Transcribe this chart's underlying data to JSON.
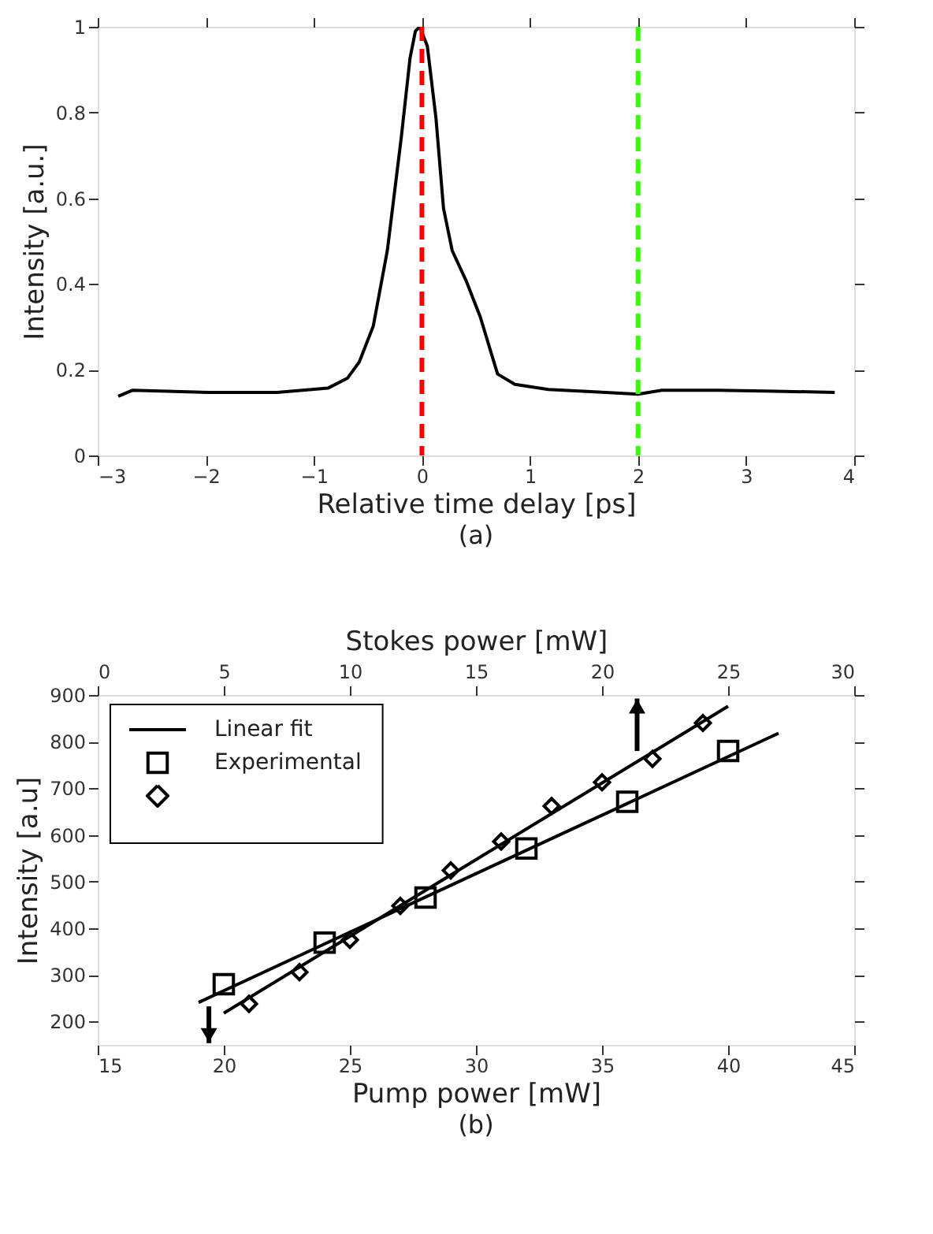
{
  "chart_data": [
    {
      "type": "line",
      "xlabel": "Relative time delay [ps]",
      "ylabel": "Intensity [a.u.]",
      "annotations": [
        "(a)"
      ],
      "xlim": [
        -3,
        4
      ],
      "xticks": [
        -3,
        -2,
        -1,
        0,
        1,
        2,
        3,
        4
      ],
      "ylim": [
        0,
        1
      ],
      "yticks": [
        0,
        0.2,
        0.4,
        0.6,
        0.8,
        1
      ],
      "grid": false,
      "legend": false,
      "series": [
        {
          "color": "#000000",
          "line_style": "solid",
          "x": [
            -2.81,
            -2.68,
            -1.97,
            -1.34,
            -0.87,
            -0.69,
            -0.58,
            -0.45,
            -0.32,
            -0.19,
            -0.11,
            -0.06,
            -0.02,
            0.05,
            0.13,
            0.2,
            0.28,
            0.41,
            0.54,
            0.7,
            0.86,
            1.17,
            1.7,
            2.0,
            2.22,
            2.74,
            3.27,
            3.82
          ],
          "values": [
            0.138,
            0.152,
            0.147,
            0.147,
            0.157,
            0.18,
            0.218,
            0.302,
            0.478,
            0.744,
            0.927,
            0.99,
            1.0,
            0.955,
            0.787,
            0.576,
            0.478,
            0.407,
            0.323,
            0.19,
            0.166,
            0.154,
            0.147,
            0.143,
            0.152,
            0.152,
            0.15,
            0.147
          ]
        }
      ],
      "ref_lines": [
        {
          "axis": "x",
          "value": 0,
          "color": "#ff0000",
          "line_style": "dashed"
        },
        {
          "axis": "x",
          "value": 2,
          "color": "#33ff00",
          "line_style": "dashed"
        }
      ]
    },
    {
      "type": "scatter",
      "xlabel": "Pump power [mW]",
      "x2label": "Stokes power [mW]",
      "ylabel": "Intensity [a.u]",
      "annotations": [
        "(b)"
      ],
      "xlim": [
        15,
        45
      ],
      "xticks": [
        15,
        20,
        25,
        30,
        35,
        40,
        45
      ],
      "x2lim": [
        0,
        30
      ],
      "x2ticks": [
        0,
        5,
        10,
        15,
        20,
        25,
        30
      ],
      "ylim": [
        150,
        900
      ],
      "yticks": [
        200,
        300,
        400,
        500,
        600,
        700,
        800,
        900
      ],
      "grid": false,
      "legend": "top left",
      "series": [
        {
          "name": "Linear fit",
          "type": "line",
          "color": "#000000",
          "line_style": "solid",
          "x": [
            19,
            42
          ],
          "values": [
            241,
            818
          ]
        },
        {
          "type": "line",
          "axis": "x2",
          "color": "#000000",
          "line_style": "solid",
          "x": [
            5,
            25
          ],
          "values": [
            218,
            876
          ]
        },
        {
          "name": "Experimental",
          "type": "scatter",
          "marker": "square",
          "color": "#000000",
          "x": [
            20,
            24,
            28,
            32,
            36,
            40
          ],
          "values": [
            280,
            369,
            466,
            571,
            671,
            780
          ]
        },
        {
          "type": "scatter",
          "axis": "x2",
          "marker": "diamond",
          "color": "#000000",
          "x": [
            6,
            8,
            10,
            12,
            14,
            16,
            18,
            20,
            22,
            24
          ],
          "values": [
            238,
            306,
            375,
            448,
            524,
            586,
            662,
            713,
            763,
            840
          ]
        }
      ]
    }
  ]
}
